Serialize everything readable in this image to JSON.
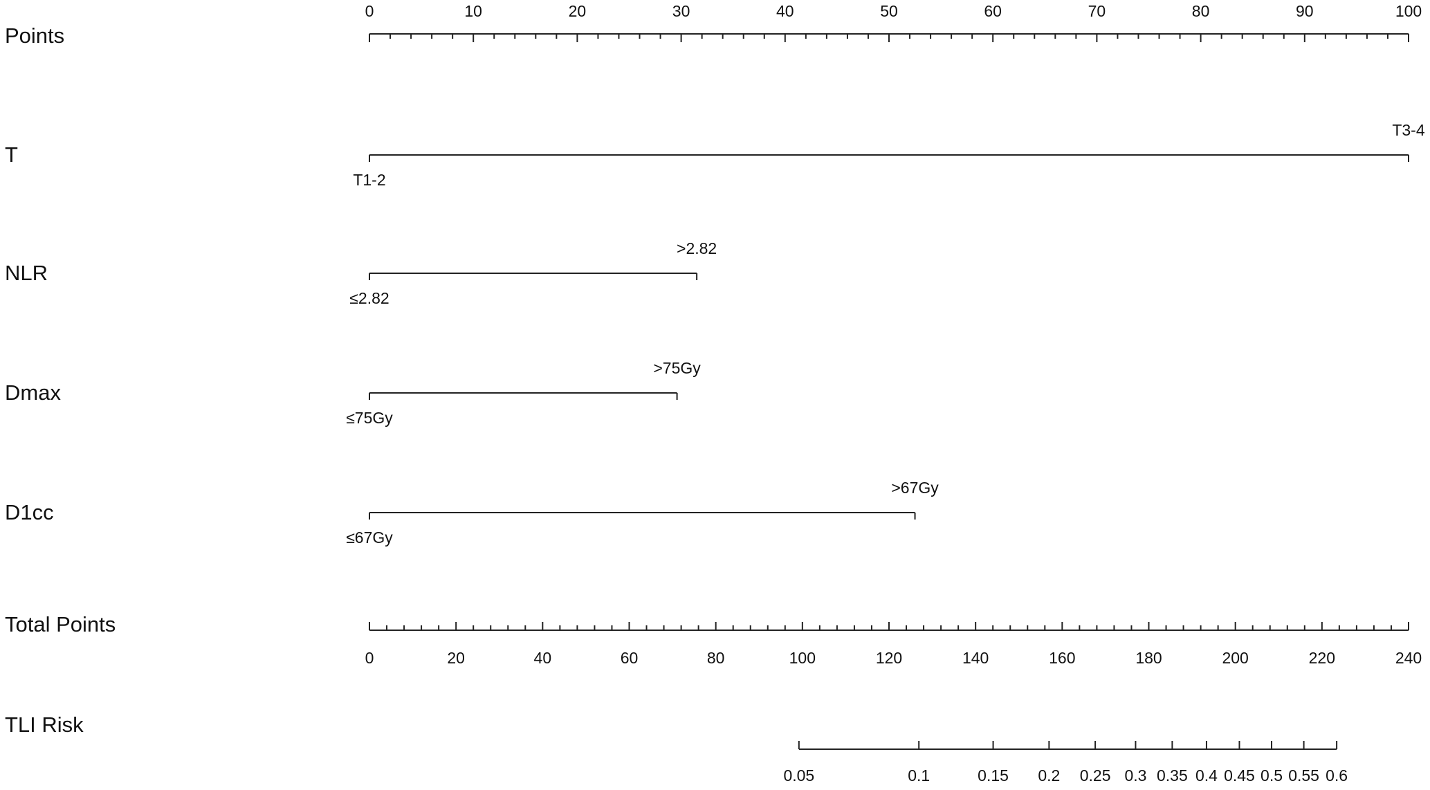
{
  "chart_data": {
    "type": "nomogram",
    "points_axis": {
      "label": "Points",
      "xlim": [
        0,
        100
      ],
      "xticks": [
        0,
        10,
        20,
        30,
        40,
        50,
        60,
        70,
        80,
        90,
        100
      ],
      "minor_ticks": [
        2,
        4,
        6,
        8,
        12,
        14,
        16,
        18,
        22,
        24,
        26,
        28,
        32,
        34,
        36,
        38,
        42,
        44,
        46,
        48,
        52,
        54,
        56,
        58,
        62,
        64,
        66,
        68,
        72,
        74,
        76,
        78,
        82,
        84,
        86,
        88,
        92,
        94,
        96,
        98
      ]
    },
    "variables": [
      {
        "name": "T",
        "levels": [
          "T1-2",
          "T3-4"
        ],
        "values": [
          0,
          100
        ]
      },
      {
        "name": "NLR",
        "levels": [
          "≤2.82",
          ">2.82"
        ],
        "values": [
          0,
          31.5
        ]
      },
      {
        "name": "Dmax",
        "levels": [
          "≤75Gy",
          ">75Gy"
        ],
        "values": [
          0,
          29.6
        ]
      },
      {
        "name": "D1cc",
        "levels": [
          "≤67Gy",
          ">67Gy"
        ],
        "values": [
          0,
          52.5
        ]
      }
    ],
    "total_points_axis": {
      "label": "Total Points",
      "xlim": [
        0,
        240
      ],
      "xticks": [
        0,
        20,
        40,
        60,
        80,
        100,
        120,
        140,
        160,
        180,
        200,
        220,
        240
      ],
      "minor_ticks": [
        4,
        8,
        12,
        16,
        24,
        28,
        32,
        36,
        44,
        48,
        52,
        56,
        64,
        68,
        72,
        76,
        84,
        88,
        92,
        96,
        104,
        108,
        112,
        116,
        124,
        128,
        132,
        136,
        144,
        148,
        152,
        156,
        164,
        168,
        172,
        176,
        184,
        188,
        192,
        196,
        204,
        208,
        212,
        216,
        224,
        228,
        232,
        236
      ]
    },
    "risk_axis": {
      "label": "TLI Risk",
      "scale": "logit",
      "xlim": [
        0.05,
        0.6
      ],
      "total_points_at_lim": [
        99.2,
        223.4
      ],
      "xticks": [
        0.05,
        0.1,
        0.15,
        0.2,
        0.25,
        0.3,
        0.35,
        0.4,
        0.45,
        0.5,
        0.55,
        0.6
      ]
    }
  }
}
